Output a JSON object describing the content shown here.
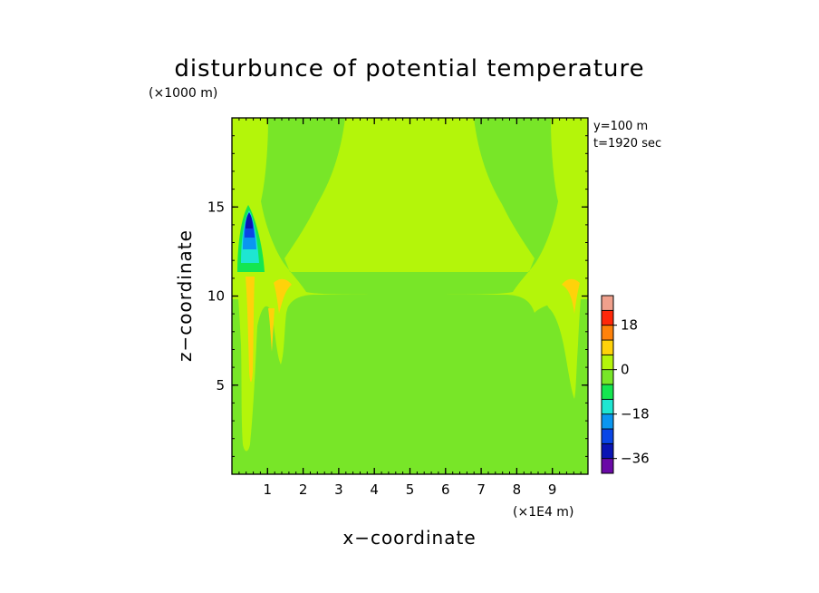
{
  "chart_data": {
    "type": "heatmap",
    "title": "disturbunce of potential temperature",
    "xlabel": "x−coordinate",
    "ylabel": "z−coordinate",
    "x_unit": "(×1E4 m)",
    "y_unit": "(×1000 m)",
    "annotations": [
      "y=100 m",
      "t=1920 sec"
    ],
    "xlim": [
      0,
      10
    ],
    "ylim": [
      0,
      20
    ],
    "x_ticks": [
      1,
      2,
      3,
      4,
      5,
      6,
      7,
      8,
      9
    ],
    "x_tick_labels": [
      "1",
      "2",
      "3",
      "4",
      "5",
      "6",
      "7",
      "8",
      "9"
    ],
    "y_ticks": [
      5,
      10,
      15
    ],
    "y_tick_labels": [
      "5",
      "10",
      "15"
    ],
    "colorbar": {
      "levels": [
        -42,
        -36,
        -30,
        -24,
        -18,
        -12,
        -6,
        0,
        6,
        12,
        18,
        24,
        30
      ],
      "labeled_values": [
        18,
        0,
        -18,
        -36
      ],
      "labels": [
        "18",
        "0",
        "−18",
        "−36"
      ],
      "colors": [
        "#6a0aa6",
        "#0a14b4",
        "#0a46e6",
        "#0a96f0",
        "#1ee6d2",
        "#14e650",
        "#78e628",
        "#b4f50a",
        "#ffd20a",
        "#ff820a",
        "#ff280a",
        "#f0a08c"
      ]
    },
    "fields": [
      {
        "name": "background",
        "value_range": [
          -6,
          0
        ],
        "color": "#78e628"
      },
      {
        "name": "upper-central-band",
        "value_range": [
          0,
          6
        ],
        "color": "#b4f50a"
      },
      {
        "name": "boundary-warm-streaks",
        "value_range": [
          6,
          12
        ],
        "color": "#ffd20a"
      },
      {
        "name": "cold-core-left",
        "x": 0.5,
        "z": 14.5,
        "min_value": -36
      }
    ]
  }
}
